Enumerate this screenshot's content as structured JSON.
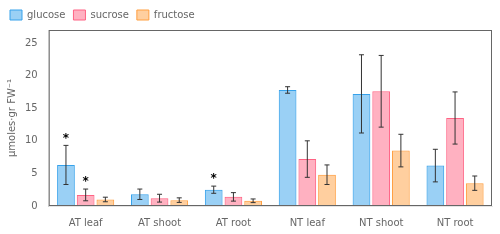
{
  "chart_data": {
    "type": "bar",
    "categories": [
      "AT leaf",
      "AT shoot",
      "AT root",
      "NT leaf",
      "NT shoot",
      "NT root"
    ],
    "series": [
      {
        "name": "glucose",
        "values": [
          6.3,
          1.8,
          2.5,
          17.8,
          17.2,
          6.2
        ],
        "errors": [
          3.0,
          0.8,
          0.55,
          0.5,
          6.0,
          2.5
        ]
      },
      {
        "name": "sucrose",
        "values": [
          1.7,
          1.2,
          1.4,
          7.2,
          17.6,
          13.5
        ],
        "errors": [
          0.9,
          0.6,
          0.65,
          2.8,
          5.5,
          4.0
        ]
      },
      {
        "name": "fructose",
        "values": [
          1.0,
          0.9,
          0.8,
          4.8,
          8.5,
          3.5
        ],
        "errors": [
          0.35,
          0.35,
          0.28,
          1.5,
          2.5,
          1.1
        ]
      }
    ],
    "ylabel": "μmoles·gr FW⁻¹",
    "ylim": [
      0,
      27
    ],
    "yticks": [
      0,
      5,
      10,
      15,
      20,
      25
    ],
    "grid": false,
    "legend": "upper left",
    "annotations": [
      {
        "text": "*",
        "category": "AT leaf",
        "series": "glucose"
      },
      {
        "text": "*",
        "category": "AT leaf",
        "series": "sucrose"
      },
      {
        "text": "*",
        "category": "AT root",
        "series": "glucose"
      }
    ]
  }
}
